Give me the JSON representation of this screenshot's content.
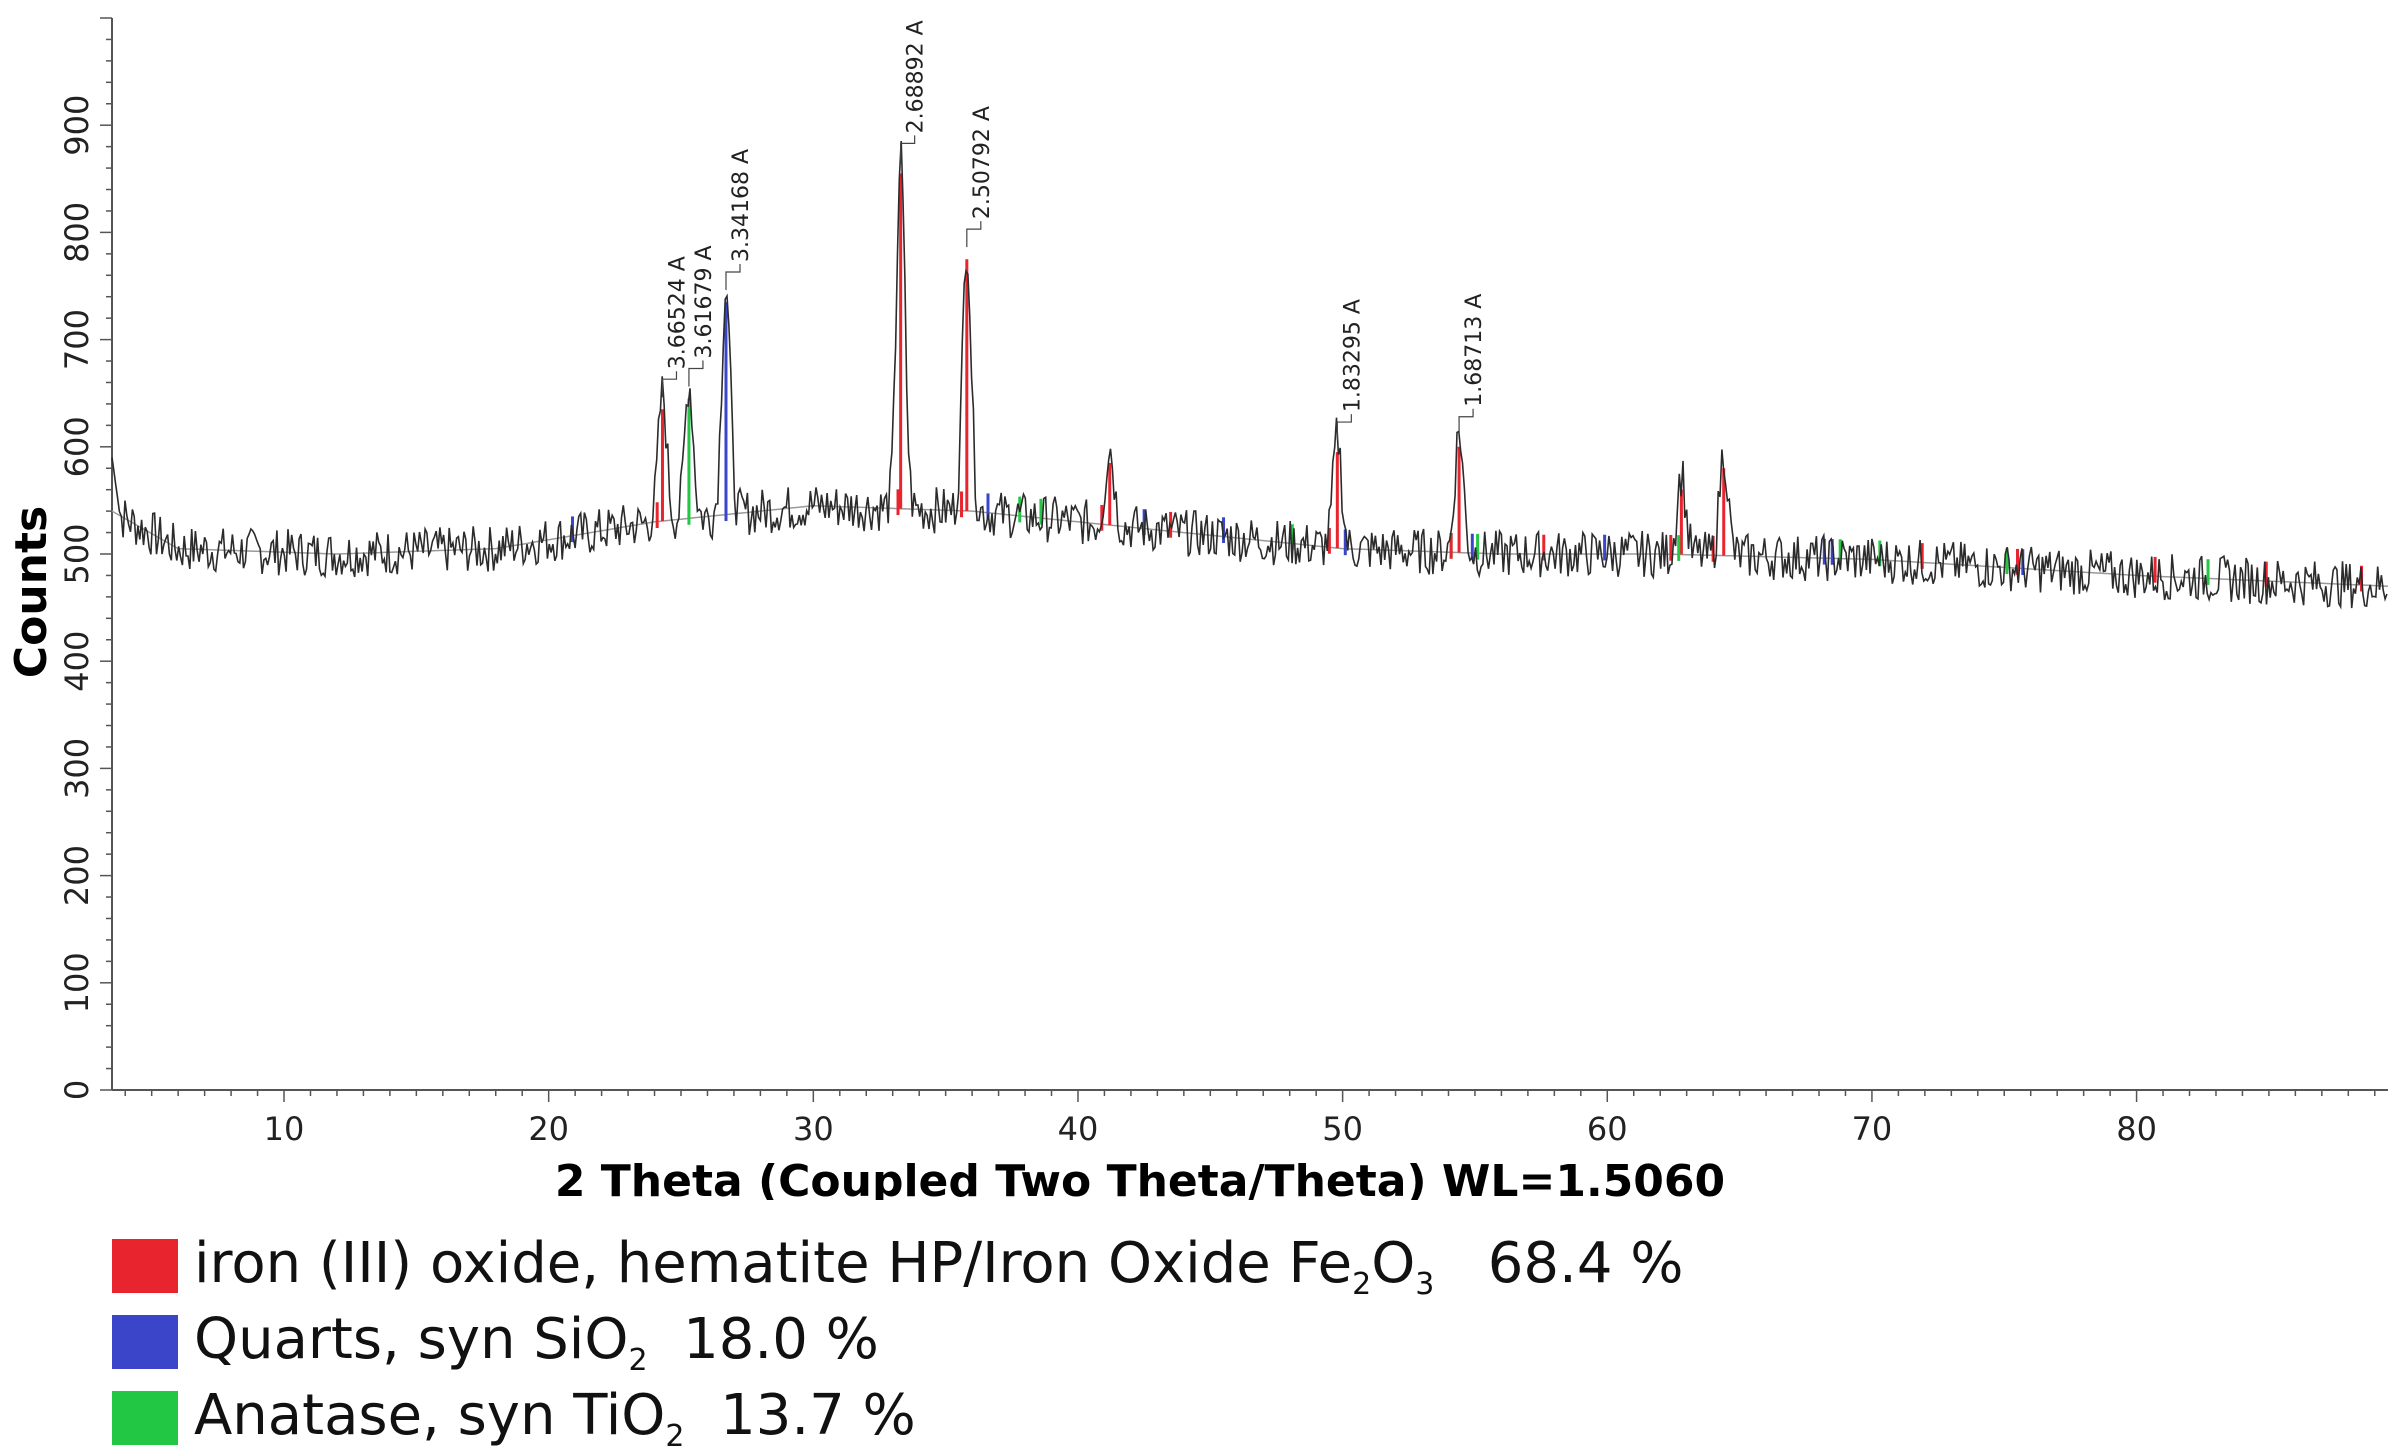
{
  "chart_data": {
    "type": "line",
    "xlabel": "2 Theta (Coupled Two Theta/Theta) WL=1.5060",
    "ylabel": "Counts",
    "xlim": [
      3.5,
      89.5
    ],
    "ylim": [
      0,
      1000
    ],
    "x_ticks": [
      10,
      20,
      30,
      40,
      50,
      60,
      70,
      80
    ],
    "y_ticks": [
      0,
      100,
      200,
      300,
      400,
      500,
      600,
      700,
      800,
      900
    ],
    "grid": false,
    "legend_position": "bottom-left",
    "baseline": [
      [
        3.5,
        540
      ],
      [
        6,
        505
      ],
      [
        12,
        500
      ],
      [
        18,
        505
      ],
      [
        24,
        530
      ],
      [
        30,
        545
      ],
      [
        36,
        540
      ],
      [
        44,
        520
      ],
      [
        50,
        505
      ],
      [
        56,
        500
      ],
      [
        62,
        500
      ],
      [
        70,
        495
      ],
      [
        80,
        480
      ],
      [
        89.5,
        470
      ]
    ],
    "peaks": [
      {
        "two_theta": 24.3,
        "counts": 650,
        "d_label": "3.66524 A",
        "phase": "iron (III) oxide"
      },
      {
        "two_theta": 25.3,
        "counts": 660,
        "d_label": "3.61679 A",
        "phase": "Anatase"
      },
      {
        "two_theta": 26.7,
        "counts": 750,
        "d_label": "3.34168 A",
        "phase": "Quarts"
      },
      {
        "two_theta": 33.3,
        "counts": 870,
        "d_label": "2.68892 A",
        "phase": "iron (III) oxide"
      },
      {
        "two_theta": 35.8,
        "counts": 790,
        "d_label": "2.50792 A",
        "phase": "iron (III) oxide"
      },
      {
        "two_theta": 41.2,
        "counts": 600,
        "d_label": "",
        "phase": "iron (III) oxide"
      },
      {
        "two_theta": 49.8,
        "counts": 610,
        "d_label": "1.83295 A",
        "phase": "iron (III) oxide"
      },
      {
        "two_theta": 54.4,
        "counts": 615,
        "d_label": "1.68713 A",
        "phase": "iron (III) oxide"
      },
      {
        "two_theta": 62.8,
        "counts": 575,
        "d_label": "",
        "phase": "iron (III) oxide"
      },
      {
        "two_theta": 64.4,
        "counts": 595,
        "d_label": "",
        "phase": "iron (III) oxide"
      }
    ],
    "phase_markers": [
      {
        "phase": "Quarts",
        "x": [
          20.9,
          26.7,
          36.6,
          42.5,
          45.5,
          50.1,
          54.9,
          59.9,
          68.2,
          68.5,
          75.7
        ]
      },
      {
        "phase": "Anatase",
        "x": [
          25.3,
          37.8,
          38.6,
          48.1,
          54.1,
          55.1,
          62.7,
          68.8,
          70.3,
          75.1,
          82.7
        ]
      },
      {
        "phase": "iron (III) oxide",
        "x": [
          24.1,
          33.2,
          35.6,
          40.9,
          43.5,
          49.5,
          54.1,
          57.6,
          62.4,
          64.0,
          71.9,
          75.5,
          80.7,
          84.9,
          88.5
        ]
      }
    ],
    "series": [
      {
        "phase": "iron (III) oxide",
        "color": "#e8252e",
        "legend_main": "iron (III) oxide, hematite HP/Iron Oxide Fe",
        "formula_sub1": "2",
        "formula_mid": "O",
        "formula_sub2": "3",
        "percent": "68.4 %"
      },
      {
        "phase": "Quarts",
        "color": "#3a45c9",
        "legend_main": "Quarts, syn SiO",
        "formula_sub1": "2",
        "percent": "18.0 %"
      },
      {
        "phase": "Anatase",
        "color": "#22c744",
        "legend_main": "Anatase, syn TiO",
        "formula_sub1": "2",
        "percent": "13.7 %"
      }
    ]
  },
  "colors": {
    "trace": "#2b2b2b",
    "fit": "#9a9a9a",
    "axis": "#555555"
  }
}
